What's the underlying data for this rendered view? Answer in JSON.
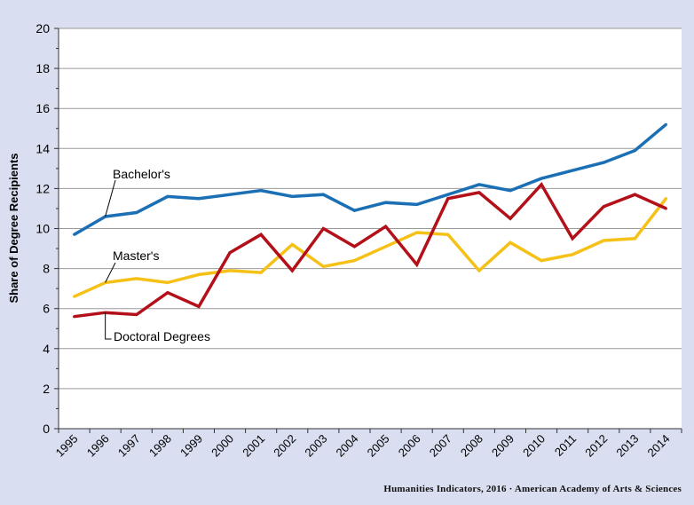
{
  "chart_data": {
    "type": "line",
    "title": "",
    "xlabel": "",
    "ylabel": "Share of Degree Recipients",
    "ylim": [
      0,
      20
    ],
    "yticks": [
      0,
      2,
      4,
      6,
      8,
      10,
      12,
      14,
      16,
      18,
      20
    ],
    "grid": true,
    "categories": [
      "1995",
      "1996",
      "1997",
      "1998",
      "1999",
      "2000",
      "2001",
      "2002",
      "2003",
      "2004",
      "2005",
      "2006",
      "2007",
      "2008",
      "2009",
      "2010",
      "2011",
      "2012",
      "2013",
      "2014"
    ],
    "series": [
      {
        "name": "Bachelor's",
        "color": "#1a6fb5",
        "values": [
          9.7,
          10.6,
          10.8,
          11.6,
          11.5,
          11.7,
          11.9,
          11.6,
          11.7,
          10.9,
          11.3,
          11.2,
          11.7,
          12.2,
          11.9,
          12.5,
          12.9,
          13.3,
          13.9,
          15.2
        ]
      },
      {
        "name": "Master's",
        "color": "#f5c116",
        "values": [
          6.6,
          7.3,
          7.5,
          7.3,
          7.7,
          7.9,
          7.8,
          9.2,
          8.1,
          8.4,
          9.1,
          9.8,
          9.7,
          7.9,
          9.3,
          8.4,
          8.7,
          9.4,
          9.5,
          11.5
        ]
      },
      {
        "name": "Doctoral Degrees",
        "color": "#b3101a",
        "values": [
          5.6,
          5.8,
          5.7,
          6.8,
          6.1,
          8.8,
          9.7,
          7.9,
          10.0,
          9.1,
          10.1,
          8.2,
          11.5,
          11.8,
          10.5,
          12.2,
          9.5,
          11.1,
          11.7,
          11.0
        ]
      }
    ]
  },
  "credit": "Humanities Indicators, 2016 · American Academy of Arts & Sciences"
}
